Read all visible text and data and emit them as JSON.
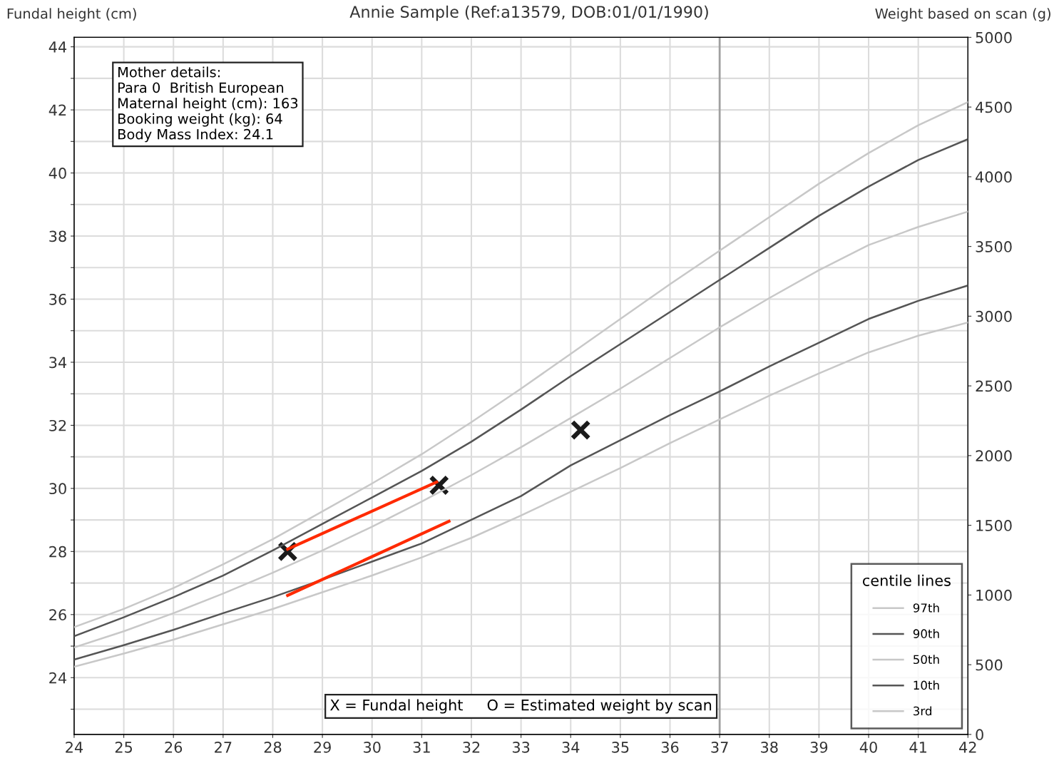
{
  "chart_data": {
    "type": "line",
    "title": "Annie Sample (Ref:a13579, DOB:01/01/1990)",
    "ylabel": "Fundal height (cm)",
    "y2label": "Weight based on scan (g)",
    "legend_title": "centile lines",
    "legend": "bottom right",
    "grid": true,
    "x": [
      24,
      25,
      26,
      27,
      28,
      29,
      30,
      31,
      32,
      33,
      34,
      35,
      36,
      37,
      38,
      39,
      40,
      41,
      42
    ],
    "xlim": [
      24,
      42
    ],
    "xticks": [
      24,
      25,
      26,
      27,
      28,
      29,
      30,
      31,
      32,
      33,
      34,
      35,
      36,
      37,
      38,
      39,
      40,
      41,
      42
    ],
    "ylim": [
      22.2,
      44.3
    ],
    "yticks": [
      {
        "value": 23,
        "label": null
      },
      24,
      {
        "value": 25,
        "label": null
      },
      26,
      {
        "value": 27,
        "label": null
      },
      28,
      {
        "value": 29,
        "label": null
      },
      30,
      {
        "value": 31,
        "label": null
      },
      32,
      {
        "value": 33,
        "label": null
      },
      34,
      {
        "value": 35,
        "label": null
      },
      36,
      {
        "value": 37,
        "label": null
      },
      38,
      {
        "value": 39,
        "label": null
      },
      40,
      {
        "value": 41,
        "label": null
      },
      42,
      {
        "value": 43,
        "label": null
      },
      44
    ],
    "y2lim": [
      0,
      5000
    ],
    "y2ticks": [
      0,
      500,
      1000,
      1500,
      2000,
      2500,
      3000,
      3500,
      4000,
      4500,
      5000
    ],
    "ref_lines": [
      {
        "axis": "x",
        "value": 37,
        "color": "#a0a0a0"
      }
    ],
    "series": [
      {
        "name": "97th",
        "color": "#c8c8c8",
        "axis": "y2",
        "values": [
          770,
          900,
          1050,
          1220,
          1400,
          1600,
          1800,
          2010,
          2240,
          2480,
          2730,
          2980,
          3230,
          3470,
          3710,
          3950,
          4170,
          4370,
          4535
        ]
      },
      {
        "name": "90th",
        "color": "#555555",
        "axis": "y2",
        "values": [
          705,
          840,
          985,
          1140,
          1320,
          1510,
          1700,
          1890,
          2100,
          2330,
          2570,
          2800,
          3030,
          3260,
          3490,
          3720,
          3930,
          4120,
          4270
        ]
      },
      {
        "name": "50th",
        "color": "#c8c8c8",
        "axis": "y2",
        "values": [
          624,
          740,
          870,
          1010,
          1160,
          1320,
          1490,
          1670,
          1860,
          2060,
          2270,
          2480,
          2700,
          2920,
          3130,
          3330,
          3510,
          3640,
          3750
        ]
      },
      {
        "name": "10th",
        "color": "#555555",
        "axis": "y2",
        "values": [
          537,
          640,
          750,
          870,
          985,
          1110,
          1240,
          1370,
          1540,
          1710,
          1930,
          2110,
          2290,
          2460,
          2640,
          2810,
          2980,
          3110,
          3220
        ]
      },
      {
        "name": "3rd",
        "color": "#c8c8c8",
        "axis": "y2",
        "values": [
          486,
          580,
          680,
          790,
          900,
          1020,
          1140,
          1270,
          1410,
          1570,
          1740,
          1910,
          2090,
          2260,
          2430,
          2590,
          2740,
          2860,
          2955
        ]
      },
      {
        "type": "line",
        "color": "#ff2a00",
        "axis": "y2",
        "x": [
          28.3,
          31.3
        ],
        "values": [
          1329,
          1810
        ]
      },
      {
        "type": "line",
        "color": "#ff2a00",
        "axis": "y2",
        "x": [
          28.3,
          31.55
        ],
        "values": [
          997,
          1529
        ]
      },
      {
        "type": "scatter",
        "color": "#1a1a1a",
        "marker": "cross",
        "x": [
          28.3,
          31.35,
          34.2
        ],
        "values": [
          28.0,
          30.1,
          31.85
        ]
      }
    ],
    "annotations": [
      "Mother details:\nPara 0  British European\nMaternal height (cm): 163\nBooking weight (kg): 64\nBody Mass Index: 24.1",
      "X = Fundal height     O = Estimated weight by scan"
    ]
  }
}
